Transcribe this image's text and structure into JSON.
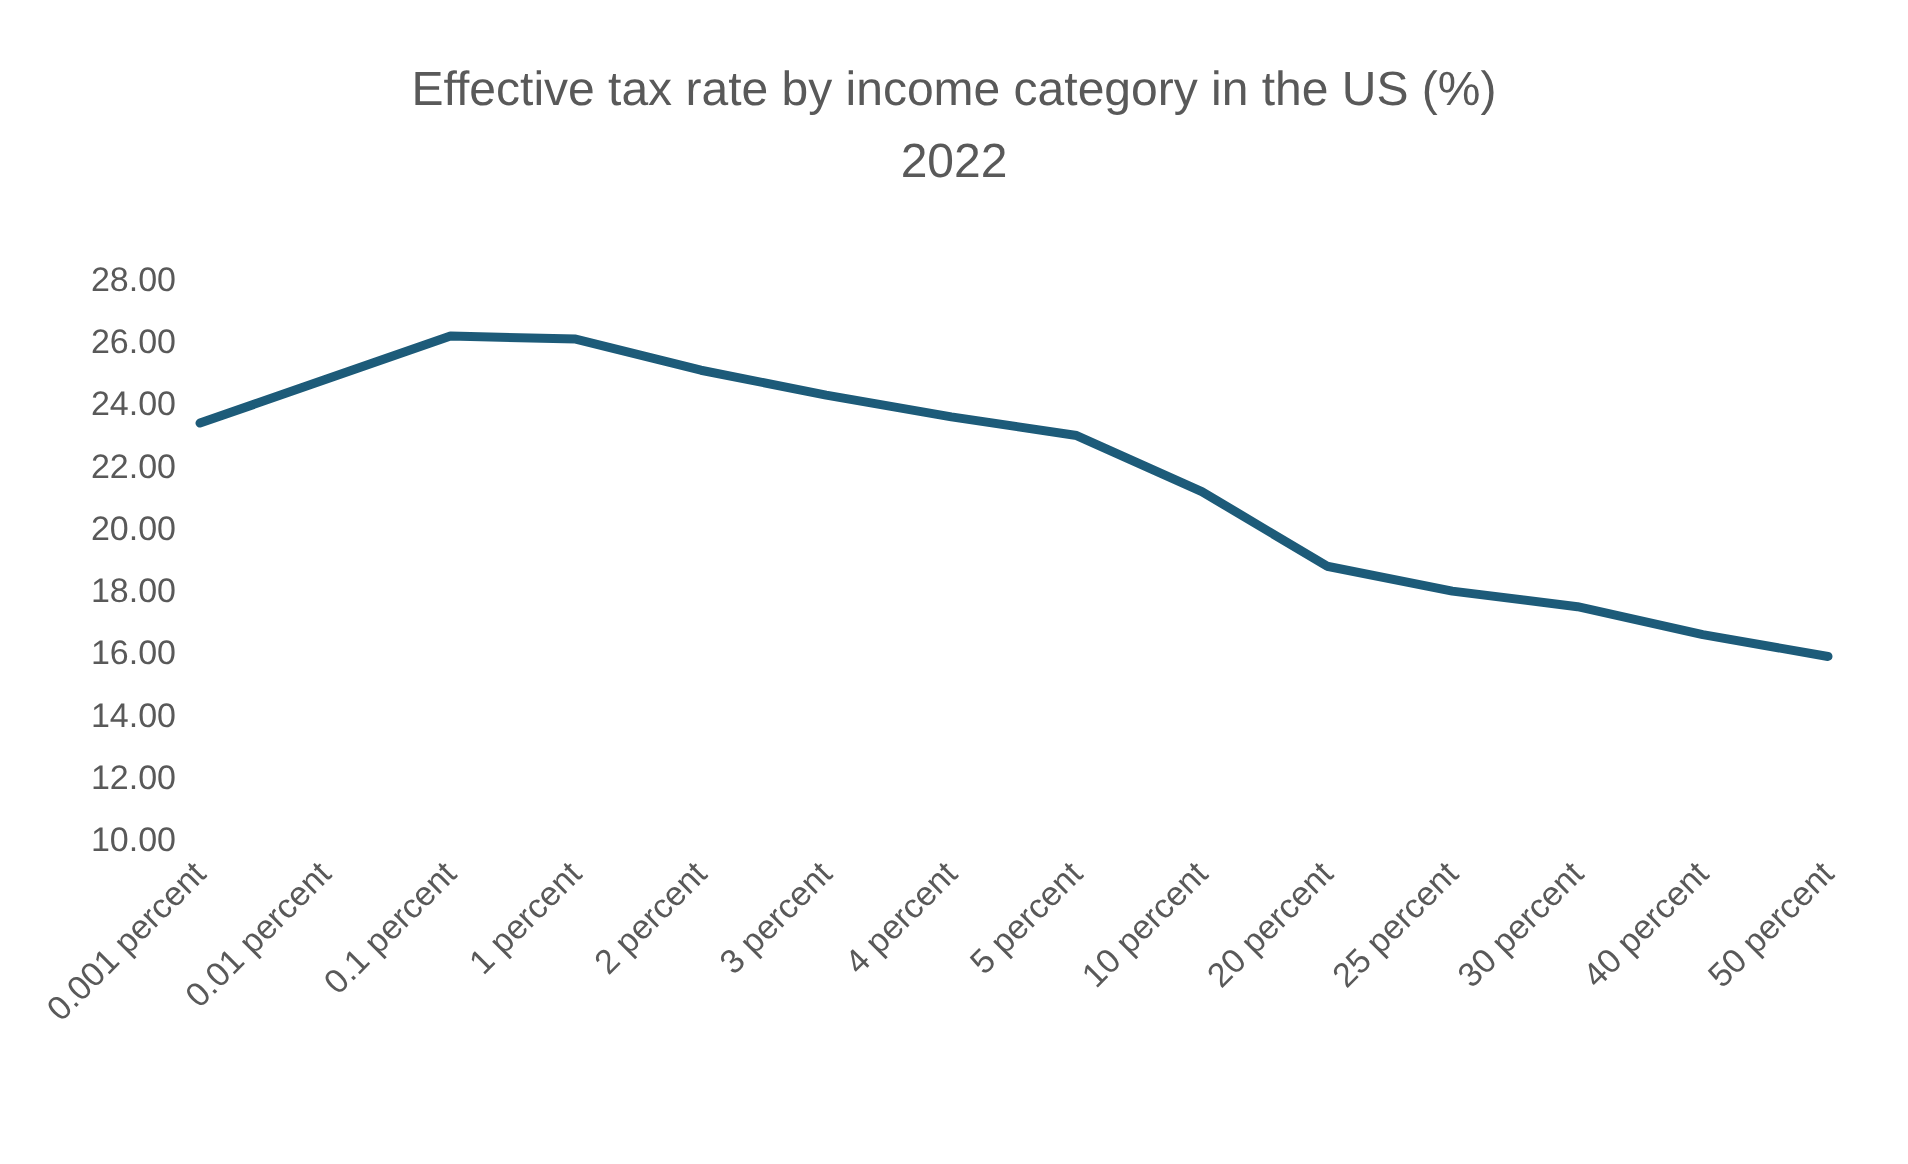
{
  "chart_data": {
    "type": "line",
    "title": "Effective tax rate by income category in the US (%)",
    "subtitle": "2022",
    "categories": [
      "0.001 percent",
      "0.01 percent",
      "0.1 percent",
      "1 percent",
      "2 percent",
      "3 percent",
      "4 percent",
      "5 percent",
      "10 percent",
      "20 percent",
      "25 percent",
      "30 percent",
      "40 percent",
      "50 percent"
    ],
    "series": [
      {
        "color": "#1d5b79",
        "values": [
          23.4,
          24.8,
          26.2,
          26.1,
          25.1,
          24.3,
          23.6,
          23.0,
          21.2,
          18.8,
          18.0,
          17.5,
          16.6,
          15.9
        ]
      }
    ],
    "ylim": [
      10,
      28
    ],
    "yticks": [
      {
        "value": 10,
        "label": "10.00"
      },
      {
        "value": 12,
        "label": "12.00"
      },
      {
        "value": 14,
        "label": "14.00"
      },
      {
        "value": 16,
        "label": "16.00"
      },
      {
        "value": 18,
        "label": "18.00"
      },
      {
        "value": 20,
        "label": "20.00"
      },
      {
        "value": 22,
        "label": "22.00"
      },
      {
        "value": 24,
        "label": "24.00"
      },
      {
        "value": 26,
        "label": "26.00"
      },
      {
        "value": 28,
        "label": "28.00"
      }
    ],
    "grid": false,
    "marker": "none",
    "line_style": "solid"
  }
}
